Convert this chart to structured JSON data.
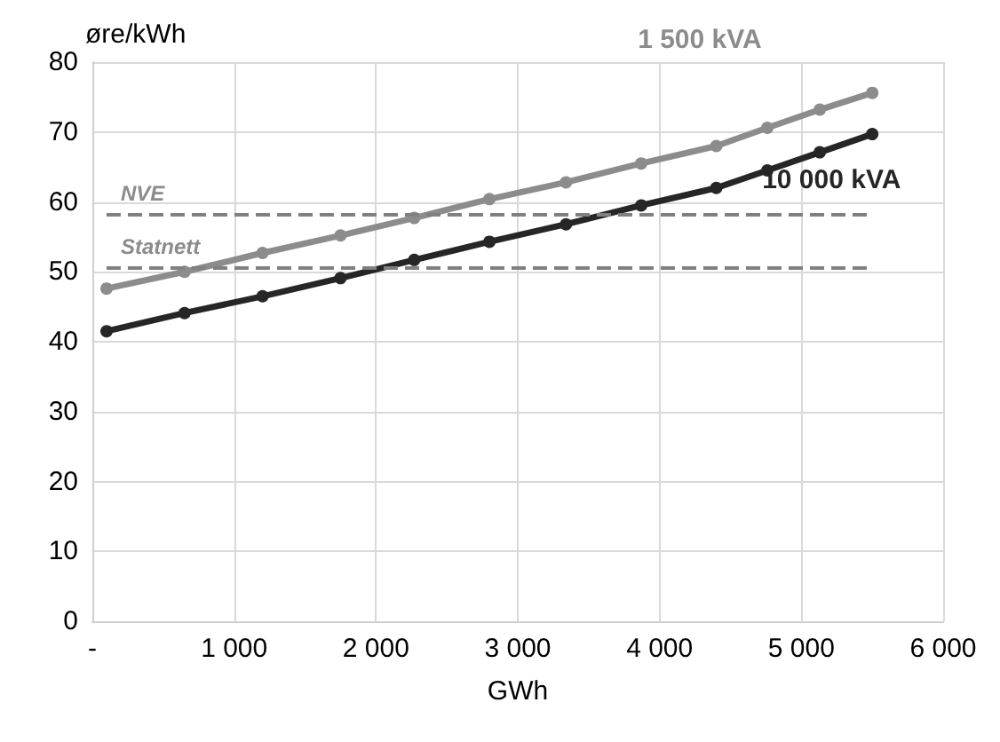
{
  "chart_data": {
    "type": "line",
    "xlabel": "GWh",
    "ylabel": "øre/kWh",
    "x": [
      100,
      650,
      1200,
      1750,
      2270,
      2800,
      3340,
      3870,
      4400,
      4760,
      5130,
      5500
    ],
    "series": [
      {
        "name": "1 500 kVA",
        "color": "#8c8c8c",
        "values": [
          47.6,
          50,
          52.7,
          55.2,
          57.7,
          60.4,
          62.8,
          65.5,
          68,
          70.6,
          73.2,
          75.6
        ]
      },
      {
        "name": "10 000 kVA",
        "color": "#262626",
        "values": [
          41.5,
          44.1,
          46.5,
          49.1,
          51.7,
          54.3,
          56.8,
          59.5,
          62,
          64.5,
          67.1,
          69.7
        ]
      }
    ],
    "ref_lines": [
      {
        "axis": "y",
        "value": 58.2,
        "label": "NVE",
        "color": "#808080",
        "line_style": "dashed"
      },
      {
        "axis": "y",
        "value": 50.6,
        "label": "Statnett",
        "color": "#808080",
        "line_style": "dashed"
      }
    ],
    "xlim": [
      0,
      6000
    ],
    "xticks": [
      {
        "value": 0,
        "label": "-"
      },
      {
        "value": 1000,
        "label": "1 000"
      },
      {
        "value": 2000,
        "label": "2 000"
      },
      {
        "value": 3000,
        "label": "3 000"
      },
      {
        "value": 4000,
        "label": "4 000"
      },
      {
        "value": 5000,
        "label": "5 000"
      },
      {
        "value": 6000,
        "label": "6 000"
      }
    ],
    "ylim": [
      0,
      80
    ],
    "yticks": [
      0,
      10,
      20,
      30,
      40,
      50,
      60,
      70,
      80
    ],
    "grid": true,
    "legend": false,
    "marker": "circle",
    "line_style": "solid"
  }
}
